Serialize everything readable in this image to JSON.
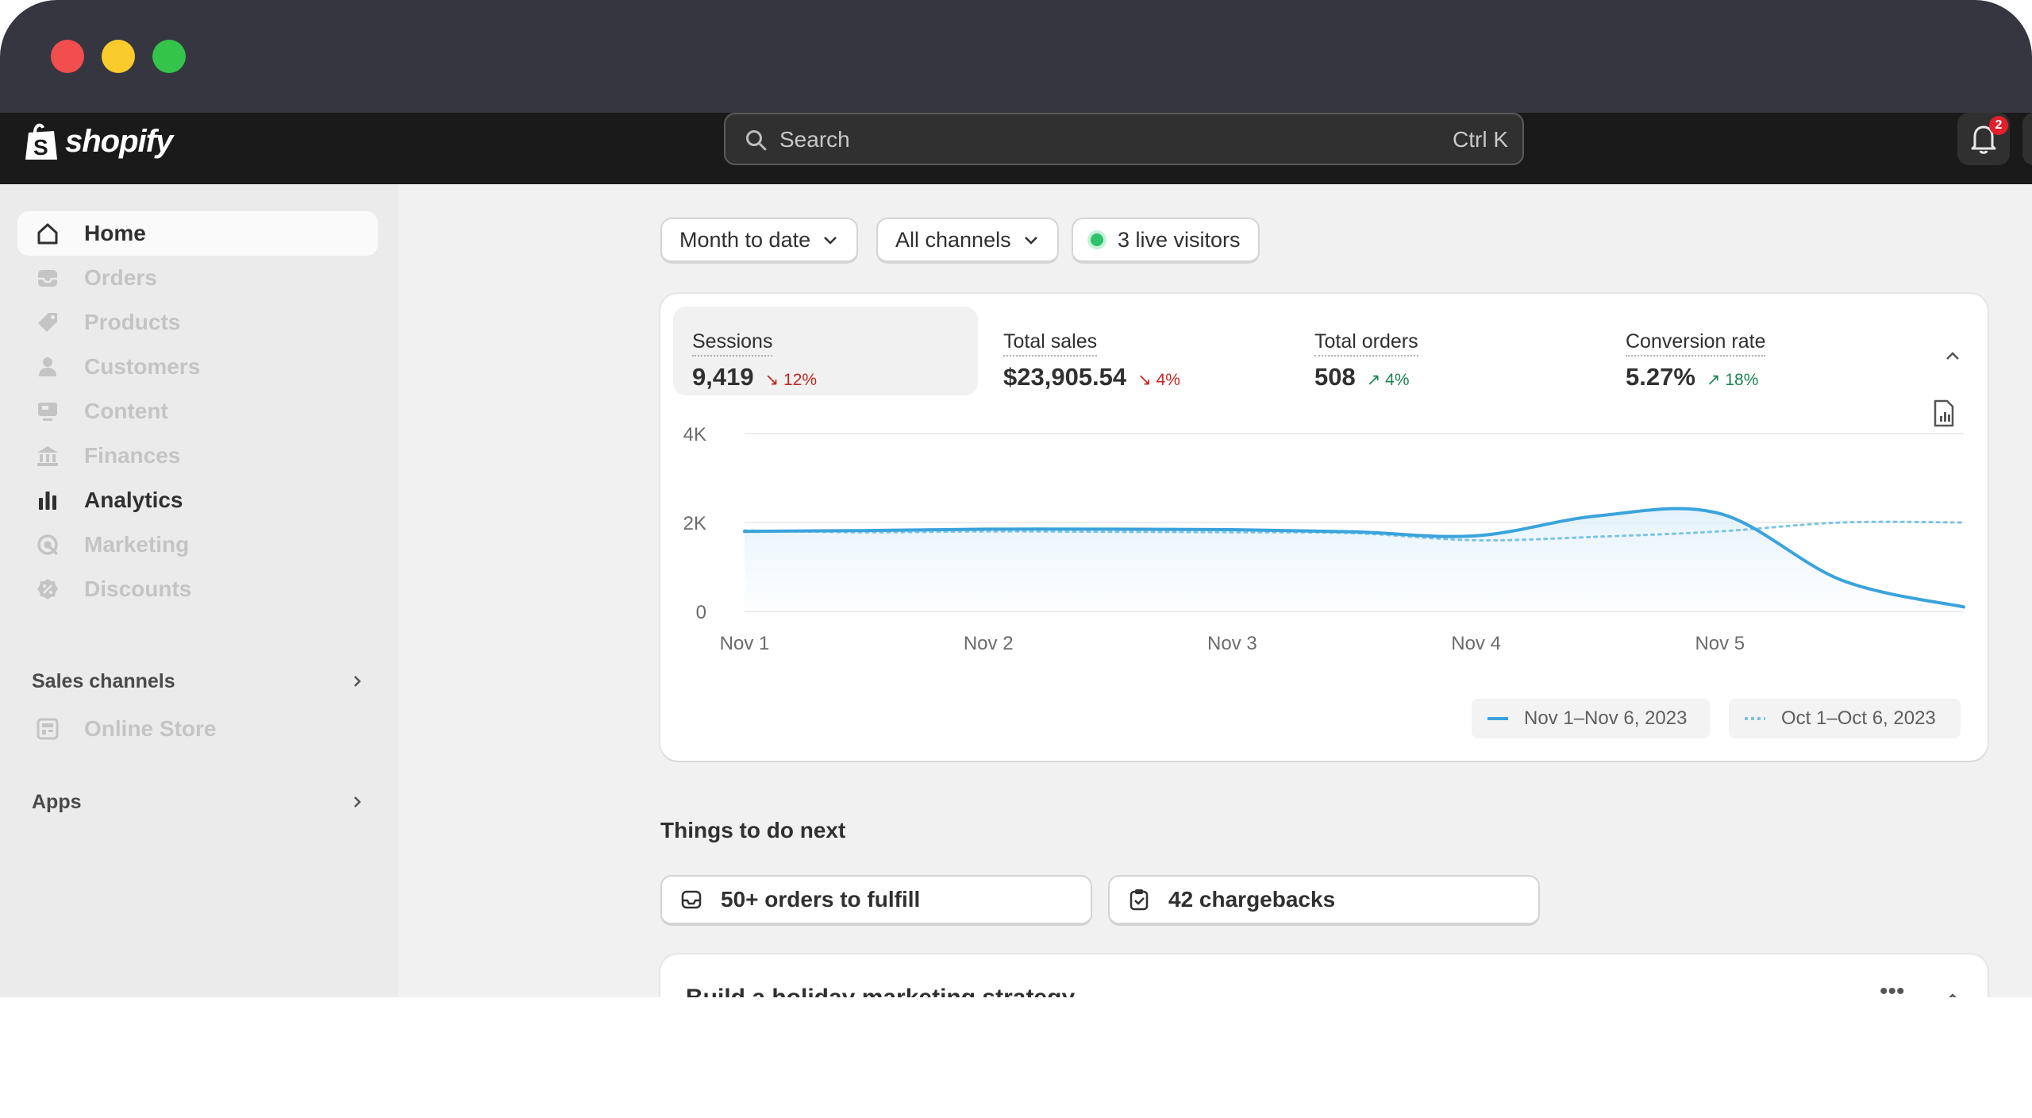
{
  "app": {
    "logo_text": "shopify"
  },
  "search": {
    "placeholder": "Search",
    "shortcut": "Ctrl K"
  },
  "notifications": {
    "count": "2"
  },
  "sidebar": {
    "items": [
      {
        "label": "Home",
        "icon": "home-icon",
        "state": "active"
      },
      {
        "label": "Orders",
        "icon": "inbox-icon",
        "state": "dimmed"
      },
      {
        "label": "Products",
        "icon": "tag-icon",
        "state": "dimmed"
      },
      {
        "label": "Customers",
        "icon": "person-icon",
        "state": "dimmed"
      },
      {
        "label": "Content",
        "icon": "content-icon",
        "state": "dimmed"
      },
      {
        "label": "Finances",
        "icon": "bank-icon",
        "state": "dimmed"
      },
      {
        "label": "Analytics",
        "icon": "bar-chart-icon",
        "state": "normal"
      },
      {
        "label": "Marketing",
        "icon": "target-icon",
        "state": "dimmed"
      },
      {
        "label": "Discounts",
        "icon": "discount-icon",
        "state": "dimmed"
      }
    ],
    "sales_channels": {
      "heading": "Sales channels",
      "items": [
        {
          "label": "Online Store",
          "icon": "store-icon"
        }
      ]
    },
    "apps": {
      "heading": "Apps"
    }
  },
  "filters": {
    "date": "Month to date",
    "channels": "All channels",
    "live": "3 live visitors"
  },
  "metrics": [
    {
      "title": "Sessions",
      "value": "9,419",
      "change": "12%",
      "direction": "down",
      "selected": true
    },
    {
      "title": "Total sales",
      "value": "$23,905.54",
      "change": "4%",
      "direction": "down"
    },
    {
      "title": "Total orders",
      "value": "508",
      "change": "4%",
      "direction": "up"
    },
    {
      "title": "Conversion rate",
      "value": "5.27%",
      "change": "18%",
      "direction": "up"
    }
  ],
  "chart_data": {
    "type": "line",
    "y_ticks": [
      "4K",
      "2K",
      "0"
    ],
    "x_ticks": [
      "Nov 1",
      "Nov 2",
      "Nov 3",
      "Nov 4",
      "Nov 5"
    ],
    "ylim": [
      0,
      4000
    ],
    "x": [
      1,
      1.5,
      2,
      2.5,
      3,
      3.5,
      4,
      4.5,
      5,
      5.5,
      6
    ],
    "series": [
      {
        "name": "Nov 1–Nov 6, 2023",
        "style": "solid",
        "color": "#3aa3dc",
        "values": [
          1800,
          1820,
          1850,
          1850,
          1840,
          1790,
          1700,
          2150,
          2200,
          700,
          100
        ]
      },
      {
        "name": "Oct 1–Oct 6, 2023",
        "style": "dotted",
        "color": "#7cc3e6",
        "values": [
          1820,
          1780,
          1800,
          1790,
          1780,
          1760,
          1600,
          1680,
          1800,
          2000,
          2000
        ]
      }
    ],
    "grid": true,
    "legend_position": "bottom-right"
  },
  "next": {
    "heading": "Things to do next",
    "tasks": [
      {
        "label": "50+ orders to fulfill",
        "icon": "inbox-icon"
      },
      {
        "label": "42 chargebacks",
        "icon": "clipboard-icon"
      }
    ]
  },
  "card2": {
    "title": "Build a holiday marketing strategy",
    "more": "•••"
  }
}
